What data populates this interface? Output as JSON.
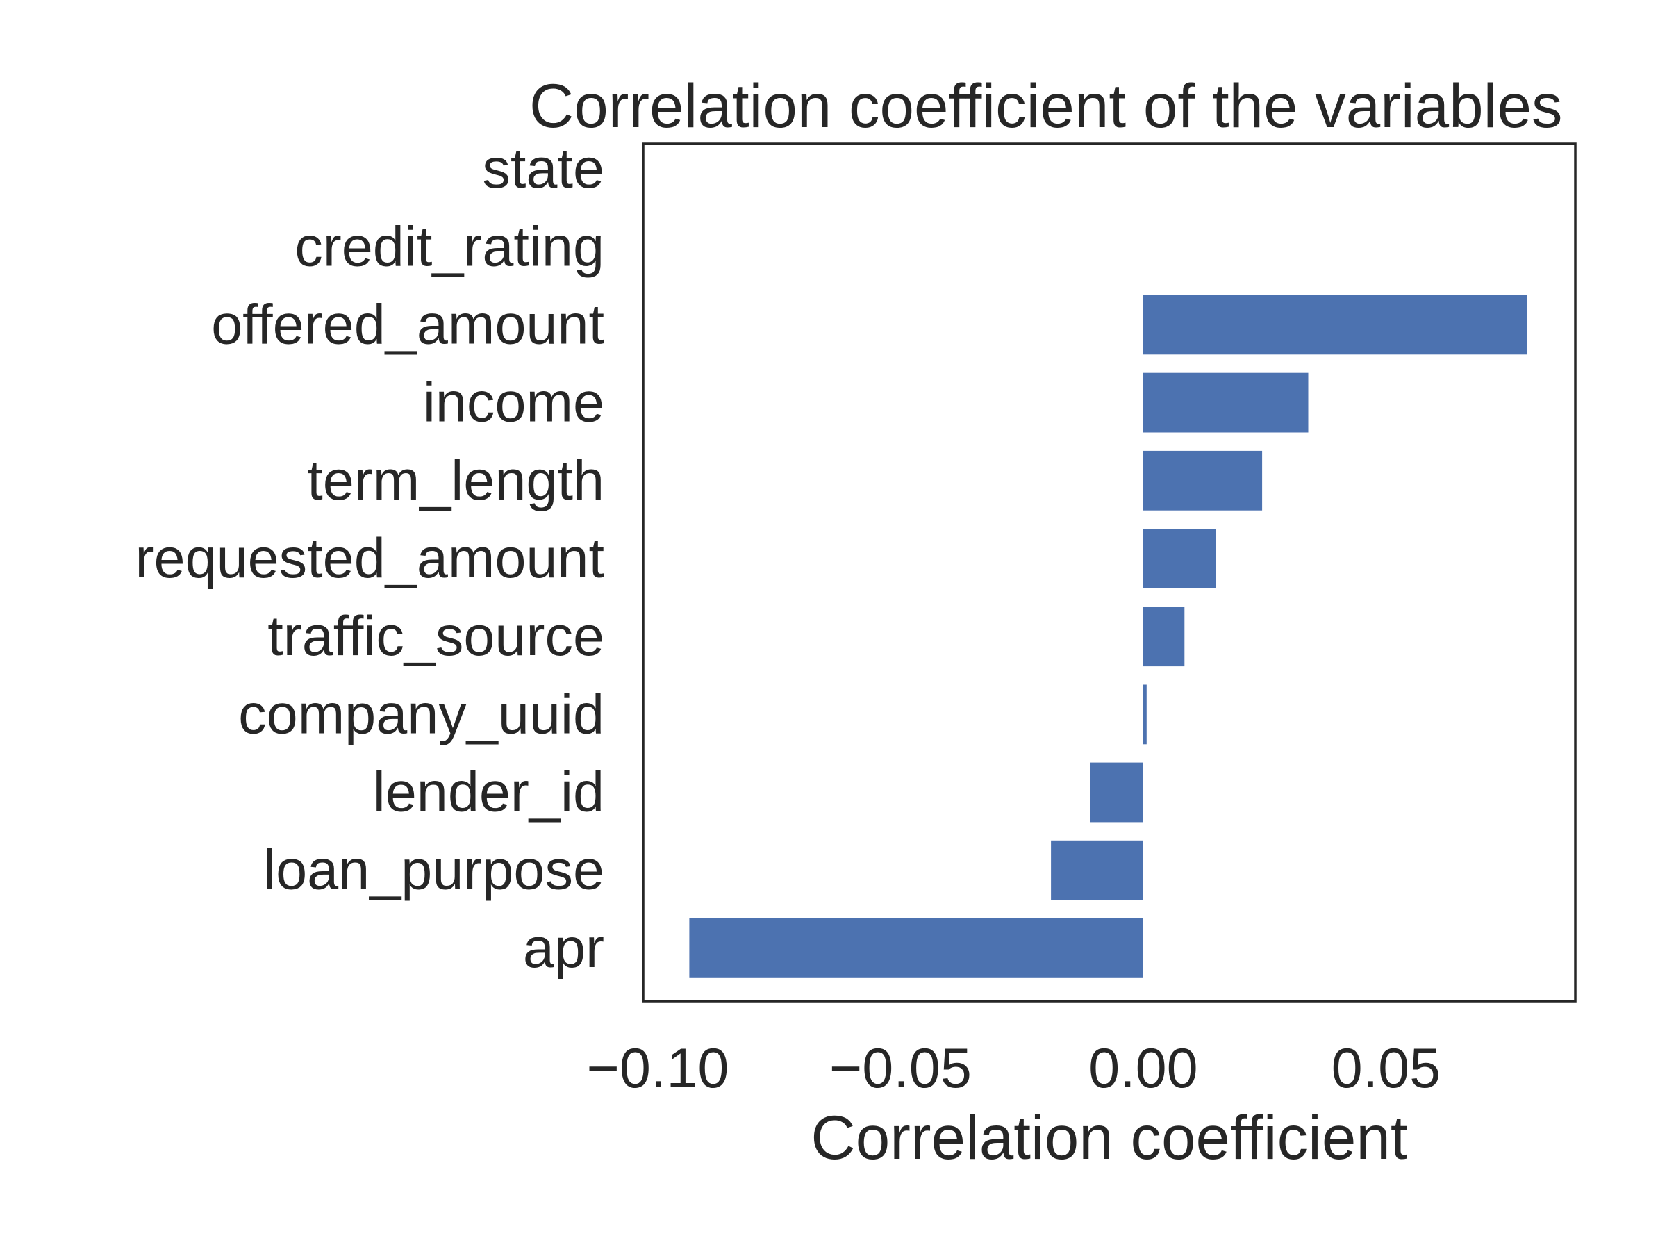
{
  "chart_data": {
    "type": "bar",
    "orientation": "horizontal",
    "title": "Correlation coefficient of the variables",
    "xlabel": "Correlation coefficient",
    "ylabel": "",
    "categories": [
      "state",
      "credit_rating",
      "offered_amount",
      "income",
      "term_length",
      "requested_amount",
      "traffic_source",
      "company_uuid",
      "lender_id",
      "loan_purpose",
      "apr"
    ],
    "values": [
      null,
      null,
      0.079,
      0.034,
      0.0245,
      0.015,
      0.0085,
      0.0007,
      -0.011,
      -0.019,
      -0.0935
    ],
    "xlim": [
      -0.103,
      0.089
    ],
    "xticks": [
      -0.1,
      -0.05,
      0.0,
      0.05
    ],
    "xtick_labels": [
      "−0.10",
      "−0.05",
      "0.00",
      "0.05"
    ],
    "grid": false,
    "legend": "none",
    "bar_color": "#4c72b0",
    "frame_color": "#262626",
    "text_color": "#262626"
  }
}
